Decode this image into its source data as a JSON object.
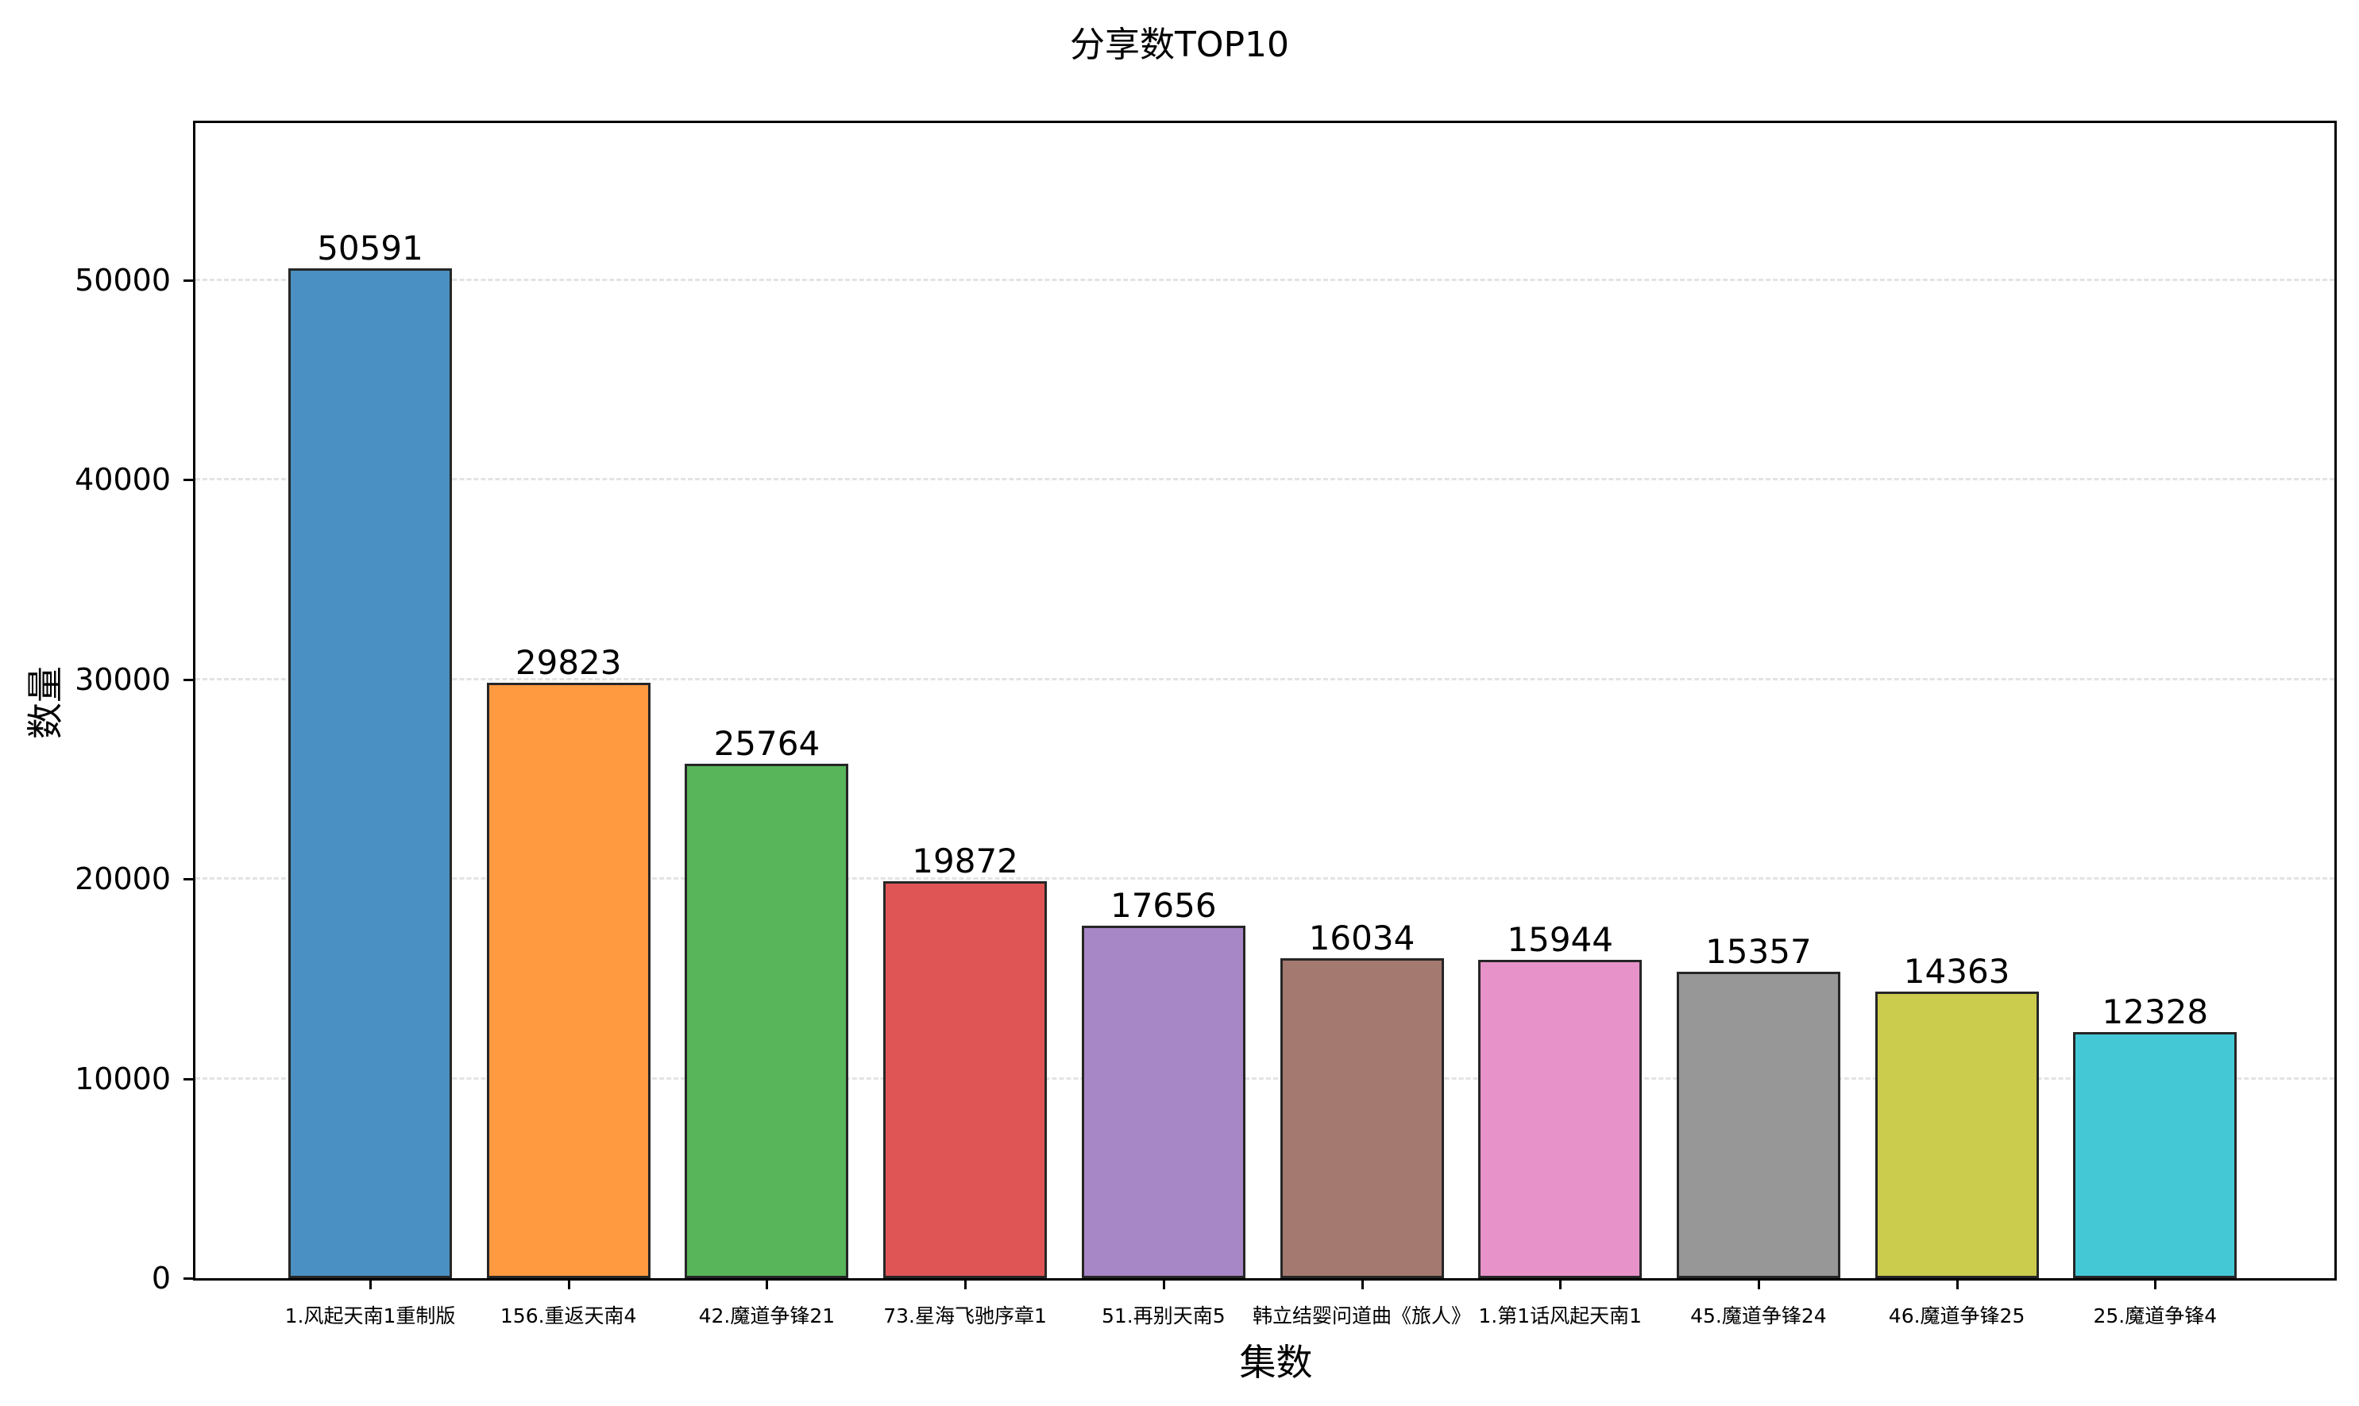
{
  "chart_data": {
    "type": "bar",
    "title": "分享数TOP10",
    "xlabel": "集数",
    "ylabel": "数量",
    "categories": [
      "1.风起天南1重制版",
      "156.重返天南4",
      "42.魔道争锋21",
      "73.星海飞驰序章1",
      "51.再别天南5",
      "韩立结婴问道曲《旅人》",
      "1.第1话风起天南1",
      "45.魔道争锋24",
      "46.魔道争锋25",
      "25.魔道争锋4"
    ],
    "values": [
      50591,
      29823,
      25764,
      19872,
      17656,
      16034,
      15944,
      15357,
      14363,
      12328
    ],
    "value_labels": [
      "50591",
      "29823",
      "25764",
      "19872",
      "17656",
      "16034",
      "15944",
      "15357",
      "14363",
      "12328"
    ],
    "colors": [
      "#4a90c2",
      "#ff9a40",
      "#58b55a",
      "#df5556",
      "#a887c7",
      "#a4796f",
      "#e793ca",
      "#979797",
      "#cbcb4e",
      "#45c8d6"
    ],
    "yticks": [
      "0",
      "10000",
      "20000",
      "30000",
      "40000",
      "50000"
    ],
    "ytick_values": [
      0,
      10000,
      20000,
      30000,
      40000,
      50000
    ],
    "ylim": [
      0,
      58000
    ],
    "grid": {
      "axis": "y",
      "style": "dashed"
    },
    "legend": null
  }
}
